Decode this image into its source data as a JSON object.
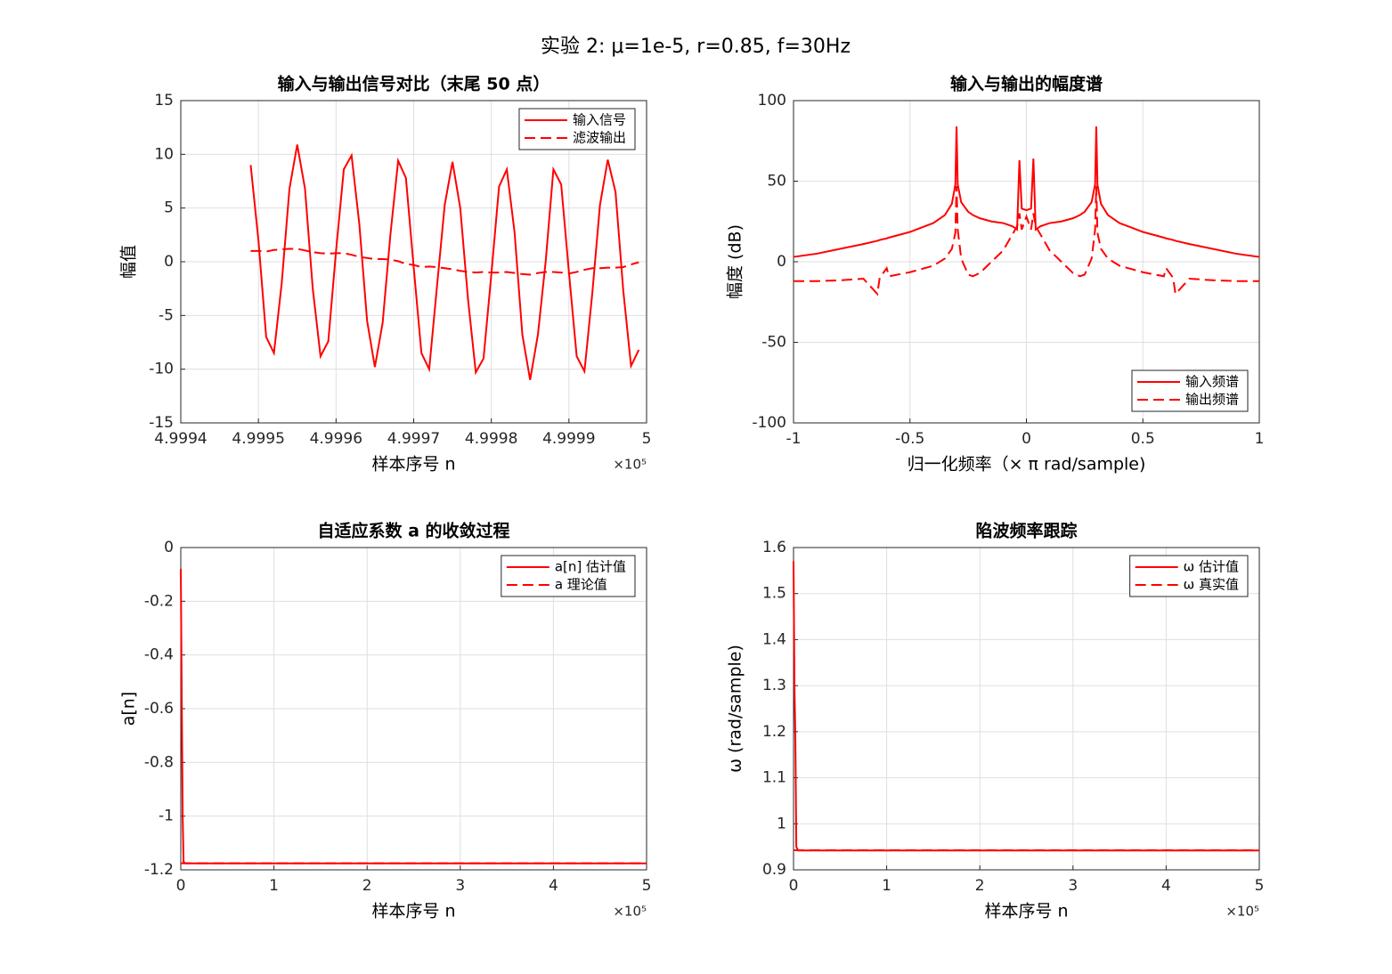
{
  "title": "实验  2:  μ=1e-5,  r=0.85,  f=30Hz",
  "chart_data": [
    {
      "type": "line",
      "title": "输入与输出信号对比（末尾 50 点）",
      "x_label": "样本序号 n",
      "y_label": "幅值",
      "x_exponent_label": "×10⁵",
      "x": [
        499949,
        499950,
        499951,
        499952,
        499953,
        499954,
        499955,
        499956,
        499957,
        499958,
        499959,
        499960,
        499961,
        499962,
        499963,
        499964,
        499965,
        499966,
        499967,
        499968,
        499969,
        499970,
        499971,
        499972,
        499973,
        499974,
        499975,
        499976,
        499977,
        499978,
        499979,
        499980,
        499981,
        499982,
        499983,
        499984,
        499985,
        499986,
        499987,
        499988,
        499989,
        499990,
        499991,
        499992,
        499993,
        499994,
        499995,
        499996,
        499997,
        499998,
        499999
      ],
      "series": [
        {
          "name": "输入信号",
          "color": "#ff0000",
          "dash": false,
          "values": [
            9.0,
            2,
            -7.0,
            -8.5,
            -2,
            6.8,
            10.9,
            6.8,
            -2.5,
            -8.8,
            -7.4,
            1,
            8.6,
            9.9,
            3.5,
            -5.5,
            -9.8,
            -5.7,
            2.5,
            9.4,
            7.8,
            -0.5,
            -8.5,
            -10,
            -2.3,
            5.3,
            9.3,
            5,
            -3.5,
            -10.3,
            -9,
            -1.2,
            7,
            8.6,
            2.7,
            -6.8,
            -11,
            -6.8,
            0,
            8.6,
            7.2,
            -1,
            -8.8,
            -10.2,
            -3,
            5.3,
            9.5,
            6.5,
            -2.7,
            -9.7,
            -8.2
          ]
        },
        {
          "name": "滤波输出",
          "color": "#ff0000",
          "dash": true,
          "values": [
            1.0,
            1.0,
            0.95,
            1.1,
            1.15,
            1.2,
            1.2,
            1.05,
            0.9,
            0.8,
            0.75,
            0.8,
            0.8,
            0.65,
            0.45,
            0.35,
            0.25,
            0.25,
            0.2,
            0.05,
            -0.2,
            -0.3,
            -0.5,
            -0.45,
            -0.5,
            -0.6,
            -0.7,
            -0.85,
            -0.95,
            -1.0,
            -0.95,
            -1.0,
            -1.0,
            -0.95,
            -1.05,
            -1.15,
            -1.2,
            -1.05,
            -0.95,
            -0.95,
            -1.0,
            -1.1,
            -0.95,
            -0.75,
            -0.6,
            -0.6,
            -0.55,
            -0.55,
            -0.5,
            -0.25,
            -0.05
          ]
        }
      ],
      "xlim": [
        499940,
        500000
      ],
      "xticks": [
        {
          "value": 499940,
          "label": "4.9994"
        },
        {
          "value": 499950,
          "label": "4.9995"
        },
        {
          "value": 499960,
          "label": "4.9996"
        },
        {
          "value": 499970,
          "label": "4.9997"
        },
        {
          "value": 499980,
          "label": "4.9998"
        },
        {
          "value": 499990,
          "label": "4.9999"
        },
        {
          "value": 500000,
          "label": "5"
        }
      ],
      "ylim": [
        -15,
        15
      ],
      "yticks": [
        -15,
        -10,
        -5,
        0,
        5,
        10,
        15
      ],
      "grid": true,
      "legend": "upper right"
    },
    {
      "type": "line",
      "title": "输入与输出的幅度谱",
      "x_label": "归一化频率（× π  rad/sample)",
      "y_label": "幅度 (dB)",
      "x": [
        -1,
        -0.9,
        -0.8,
        -0.7,
        -0.64,
        -0.63,
        -0.6,
        -0.59,
        -0.5,
        -0.4,
        -0.35,
        -0.32,
        -0.305,
        -0.3,
        -0.295,
        -0.28,
        -0.25,
        -0.23,
        -0.2,
        -0.15,
        -0.1,
        -0.06,
        -0.04,
        -0.03,
        -0.02,
        0,
        0.02,
        0.03,
        0.04,
        0.06,
        0.1,
        0.15,
        0.2,
        0.23,
        0.25,
        0.28,
        0.295,
        0.3,
        0.305,
        0.32,
        0.35,
        0.4,
        0.5,
        0.59,
        0.6,
        0.63,
        0.64,
        0.7,
        0.8,
        0.9,
        1
      ],
      "series": [
        {
          "name": "输入频谱",
          "color": "#ff0000",
          "dash": false,
          "values": [
            3,
            5,
            8,
            11,
            13,
            13.5,
            14.5,
            15,
            18.5,
            24,
            29,
            36,
            48,
            84,
            48,
            37,
            31,
            29,
            27,
            25,
            24,
            22,
            20,
            63,
            33,
            32,
            33,
            64,
            20,
            22,
            24,
            25,
            27,
            29,
            31,
            37,
            48,
            84,
            48,
            36,
            29,
            24,
            18.5,
            15,
            14.5,
            13.5,
            13,
            11,
            8,
            5,
            3
          ]
        },
        {
          "name": "输出频谱",
          "color": "#ff0000",
          "dash": true,
          "values": [
            -12,
            -12,
            -11.5,
            -10.5,
            -20,
            -10,
            -4,
            -9,
            -6.5,
            -2.5,
            2,
            8,
            18,
            47,
            20,
            2,
            -8,
            -9,
            -7,
            0,
            7,
            17,
            22,
            30,
            20,
            28,
            20,
            30,
            22,
            17,
            7,
            0,
            -7,
            -9,
            -8,
            2,
            20,
            47,
            18,
            8,
            2,
            -2.5,
            -6.5,
            -9,
            -4,
            -10,
            -20,
            -10.5,
            -11.5,
            -12,
            -12
          ]
        }
      ],
      "xlim": [
        -1,
        1
      ],
      "xticks": [
        -1,
        -0.5,
        0,
        0.5,
        1
      ],
      "ylim": [
        -100,
        100
      ],
      "yticks": [
        -100,
        -50,
        0,
        50,
        100
      ],
      "grid": true,
      "legend": "lower right"
    },
    {
      "type": "line",
      "title": "自适应系数 a 的收敛过程",
      "x_label": "样本序号 n",
      "y_label": "a[n]",
      "x_exponent_label": "×10⁵",
      "x": [
        0,
        1000,
        2000,
        3000,
        5000,
        100000,
        200000,
        300000,
        400000,
        500000
      ],
      "series": [
        {
          "name": "a[n] 估计值",
          "color": "#ff0000",
          "dash": false,
          "values": [
            -0.08,
            -0.55,
            -1.0,
            -1.17,
            -1.176,
            -1.176,
            -1.176,
            -1.176,
            -1.176,
            -1.176
          ]
        },
        {
          "name": "a 理论值",
          "color": "#ff0000",
          "dash": true,
          "values": [
            -1.1756,
            -1.1756,
            -1.1756,
            -1.1756,
            -1.1756,
            -1.1756,
            -1.1756,
            -1.1756,
            -1.1756,
            -1.1756
          ]
        }
      ],
      "xlim": [
        0,
        500000
      ],
      "xticks": [
        0,
        {
          "value": 100000,
          "label": "1"
        },
        {
          "value": 200000,
          "label": "2"
        },
        {
          "value": 300000,
          "label": "3"
        },
        {
          "value": 400000,
          "label": "4"
        },
        {
          "value": 500000,
          "label": "5"
        }
      ],
      "ylim": [
        -1.2,
        0
      ],
      "yticks": [
        -1.2,
        -1,
        -0.8,
        -0.6,
        -0.4,
        -0.2,
        0
      ],
      "grid": true,
      "legend": "upper right"
    },
    {
      "type": "line",
      "title": "陷波频率跟踪",
      "x_label": "样本序号 n",
      "y_label": "ω  (rad/sample)",
      "x_exponent_label": "×10⁵",
      "x": [
        0,
        1000,
        2000,
        3000,
        5000,
        100000,
        200000,
        300000,
        400000,
        500000
      ],
      "series": [
        {
          "name": "ω  估计值",
          "color": "#ff0000",
          "dash": false,
          "values": [
            1.57,
            1.3,
            1.18,
            0.95,
            0.942,
            0.942,
            0.942,
            0.942,
            0.942,
            0.942
          ]
        },
        {
          "name": "ω  真实值",
          "color": "#ff0000",
          "dash": true,
          "values": [
            0.9425,
            0.9425,
            0.9425,
            0.9425,
            0.9425,
            0.9425,
            0.9425,
            0.9425,
            0.9425,
            0.9425
          ]
        }
      ],
      "xlim": [
        0,
        500000
      ],
      "xticks": [
        0,
        {
          "value": 100000,
          "label": "1"
        },
        {
          "value": 200000,
          "label": "2"
        },
        {
          "value": 300000,
          "label": "3"
        },
        {
          "value": 400000,
          "label": "4"
        },
        {
          "value": 500000,
          "label": "5"
        }
      ],
      "ylim": [
        0.9,
        1.6
      ],
      "yticks": [
        0.9,
        1,
        1.1,
        1.2,
        1.3,
        1.4,
        1.5,
        1.6
      ],
      "grid": true,
      "legend": "upper right"
    }
  ]
}
